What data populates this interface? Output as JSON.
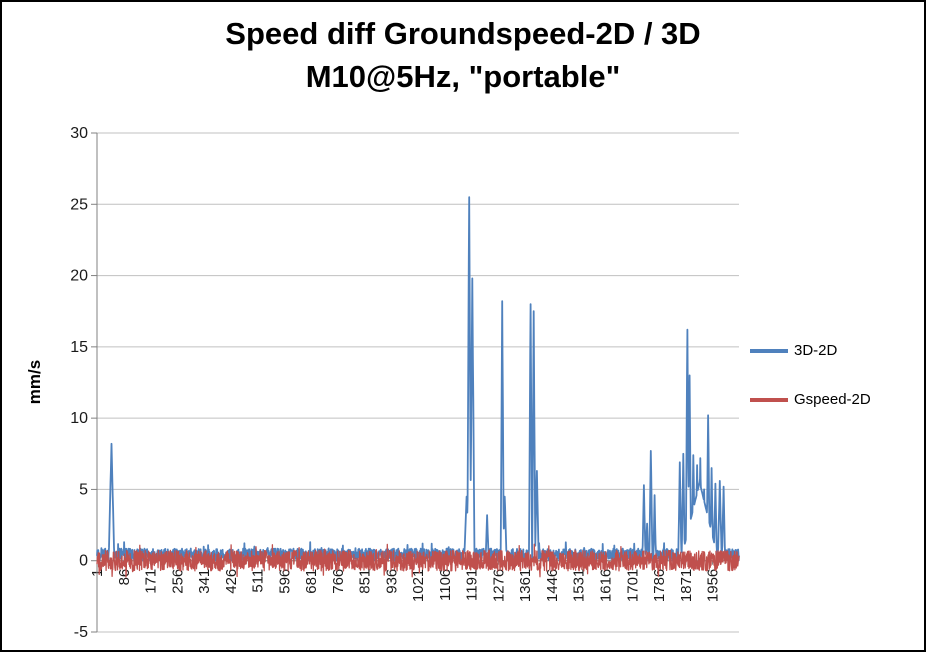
{
  "title": {
    "line1": "Speed diff Groundspeed-2D / 3D",
    "line2": "M10@5Hz, \"portable\""
  },
  "chart_data": {
    "type": "line",
    "title": "Speed diff Groundspeed-2D / 3D M10@5Hz, \"portable\"",
    "ylabel": "mm/s",
    "xlabel": "",
    "ylim": [
      -5,
      30
    ],
    "y_tick_step": 5,
    "y_tick_labels": [
      "-5",
      "0",
      "5",
      "10",
      "15",
      "20",
      "25",
      "30"
    ],
    "x_tick_start": 1,
    "x_tick_interval": 85,
    "x_max_category": 2040,
    "x_tick_labels": [
      "1",
      "86",
      "171",
      "256",
      "341",
      "426",
      "511",
      "596",
      "681",
      "766",
      "851",
      "936",
      "1021",
      "1106",
      "1191",
      "1276",
      "1361",
      "1446",
      "1531",
      "1616",
      "1701",
      "1786",
      "1871",
      "1956"
    ],
    "grid": "horizontal",
    "legend_position": "right",
    "gridline_color": "#C0C0C0",
    "axis_color": "#808080",
    "tick_label_color": "#1a1a1a",
    "series": [
      {
        "name": "3D-2D",
        "color": "#4F81BD",
        "width": 1.8,
        "noise_seed": 7,
        "baseline_noise": [
          0,
          0.85
        ],
        "spikes_x_peak_width": [
          [
            47,
            8.2,
            9
          ],
          [
            1175,
            4.5,
            8
          ],
          [
            1183,
            25.5,
            6
          ],
          [
            1193,
            19.8,
            7
          ],
          [
            1240,
            3.2,
            5
          ],
          [
            1288,
            18.2,
            5
          ],
          [
            1296,
            4.5,
            6
          ],
          [
            1378,
            18.0,
            5
          ],
          [
            1388,
            17.5,
            5
          ],
          [
            1398,
            6.3,
            6
          ],
          [
            1738,
            5.3,
            5
          ],
          [
            1748,
            2.6,
            4
          ],
          [
            1760,
            7.7,
            5
          ],
          [
            1772,
            4.6,
            4
          ],
          [
            1915,
            5.5,
            60
          ],
          [
            1852,
            6.9,
            5
          ],
          [
            1863,
            7.5,
            5
          ],
          [
            1876,
            16.2,
            5
          ],
          [
            1883,
            13.0,
            5
          ],
          [
            1895,
            7.4,
            5
          ],
          [
            1907,
            6.7,
            5
          ],
          [
            1917,
            7.2,
            5
          ],
          [
            1929,
            5.0,
            5
          ],
          [
            1942,
            10.2,
            5
          ],
          [
            1953,
            6.5,
            5
          ],
          [
            1965,
            5.4,
            5
          ],
          [
            1979,
            5.6,
            6
          ],
          [
            1991,
            5.2,
            5
          ]
        ]
      },
      {
        "name": "Gspeed-2D",
        "color": "#C0504D",
        "width": 1.3,
        "noise_seed": 13,
        "baseline_noise": [
          -0.72,
          0.72
        ],
        "spikes_x_peak_width": []
      }
    ]
  }
}
